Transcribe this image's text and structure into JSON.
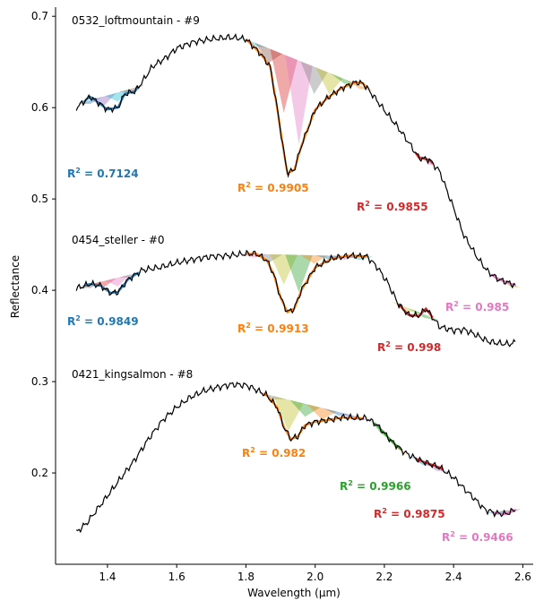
{
  "chart_data": {
    "type": "line",
    "title": "",
    "xlabel": "Wavelength (µm)",
    "ylabel": "Reflectance",
    "xlim": [
      1.25,
      2.63
    ],
    "ylim": [
      0.1,
      0.71
    ],
    "xticks": [
      1.4,
      1.6,
      1.8,
      2.0,
      2.2,
      2.4,
      2.6
    ],
    "yticks": [
      0.2,
      0.3,
      0.4,
      0.5,
      0.6,
      0.7
    ],
    "grid": false,
    "colors": {
      "spectrum": "#000000",
      "blue": "#1f77b4",
      "orange": "#ff7f0e",
      "green": "#2ca02c",
      "red": "#d62728",
      "pink": "#e377c2",
      "cyan": "#17becf",
      "purple": "#9467bd",
      "brown": "#8c564b",
      "olive": "#bcbd22",
      "gray": "#7f7f7f"
    },
    "spectra": [
      {
        "name": "0532_loftmountain - #9",
        "points": [
          [
            1.31,
            0.6
          ],
          [
            1.35,
            0.612
          ],
          [
            1.4,
            0.598
          ],
          [
            1.43,
            0.6
          ],
          [
            1.45,
            0.615
          ],
          [
            1.48,
            0.618
          ],
          [
            1.5,
            0.628
          ],
          [
            1.53,
            0.645
          ],
          [
            1.57,
            0.655
          ],
          [
            1.6,
            0.665
          ],
          [
            1.65,
            0.672
          ],
          [
            1.7,
            0.675
          ],
          [
            1.75,
            0.677
          ],
          [
            1.78,
            0.676
          ],
          [
            1.8,
            0.675
          ],
          [
            1.84,
            0.66
          ],
          [
            1.87,
            0.645
          ],
          [
            1.89,
            0.6
          ],
          [
            1.91,
            0.55
          ],
          [
            1.92,
            0.528
          ],
          [
            1.94,
            0.532
          ],
          [
            1.96,
            0.558
          ],
          [
            2.0,
            0.598
          ],
          [
            2.04,
            0.612
          ],
          [
            2.08,
            0.622
          ],
          [
            2.12,
            0.628
          ],
          [
            2.14,
            0.626
          ],
          [
            2.17,
            0.612
          ],
          [
            2.2,
            0.597
          ],
          [
            2.24,
            0.578
          ],
          [
            2.27,
            0.562
          ],
          [
            2.3,
            0.545
          ],
          [
            2.33,
            0.543
          ],
          [
            2.36,
            0.53
          ],
          [
            2.4,
            0.49
          ],
          [
            2.43,
            0.46
          ],
          [
            2.47,
            0.435
          ],
          [
            2.5,
            0.42
          ],
          [
            2.53,
            0.412
          ],
          [
            2.56,
            0.408
          ],
          [
            2.58,
            0.405
          ]
        ],
        "fits": [
          {
            "color": "blue",
            "range": [
              1.33,
              1.49
            ],
            "r2": "0.7124"
          },
          {
            "color": "orange",
            "range": [
              1.8,
              2.15
            ],
            "r2": "0.9905"
          },
          {
            "color": "red",
            "range": [
              2.29,
              2.34
            ],
            "r2": "0.9855"
          },
          {
            "color": "pink",
            "range": [
              2.51,
              2.58
            ],
            "r2": "0.985"
          }
        ]
      },
      {
        "name": "0454_steller - #0",
        "points": [
          [
            1.31,
            0.402
          ],
          [
            1.35,
            0.407
          ],
          [
            1.38,
            0.405
          ],
          [
            1.41,
            0.397
          ],
          [
            1.43,
            0.398
          ],
          [
            1.46,
            0.412
          ],
          [
            1.5,
            0.422
          ],
          [
            1.55,
            0.425
          ],
          [
            1.6,
            0.43
          ],
          [
            1.65,
            0.434
          ],
          [
            1.7,
            0.437
          ],
          [
            1.75,
            0.438
          ],
          [
            1.8,
            0.44
          ],
          [
            1.83,
            0.44
          ],
          [
            1.86,
            0.433
          ],
          [
            1.88,
            0.418
          ],
          [
            1.9,
            0.392
          ],
          [
            1.92,
            0.376
          ],
          [
            1.94,
            0.38
          ],
          [
            1.96,
            0.4
          ],
          [
            2.0,
            0.425
          ],
          [
            2.05,
            0.435
          ],
          [
            2.1,
            0.438
          ],
          [
            2.15,
            0.437
          ],
          [
            2.18,
            0.425
          ],
          [
            2.21,
            0.408
          ],
          [
            2.24,
            0.385
          ],
          [
            2.27,
            0.373
          ],
          [
            2.3,
            0.372
          ],
          [
            2.32,
            0.38
          ],
          [
            2.34,
            0.37
          ],
          [
            2.36,
            0.36
          ],
          [
            2.4,
            0.356
          ],
          [
            2.43,
            0.357
          ],
          [
            2.46,
            0.352
          ],
          [
            2.5,
            0.344
          ],
          [
            2.53,
            0.342
          ],
          [
            2.56,
            0.341
          ],
          [
            2.58,
            0.343
          ]
        ],
        "fits": [
          {
            "color": "blue",
            "range": [
              1.33,
              1.49
            ],
            "r2": "0.9849"
          },
          {
            "color": "orange",
            "range": [
              1.8,
              2.15
            ],
            "r2": "0.9913"
          },
          {
            "color": "red",
            "range": [
              2.24,
              2.34
            ],
            "r2": "0.998"
          }
        ]
      },
      {
        "name": "0421_kingsalmon - #8",
        "points": [
          [
            1.31,
            0.135
          ],
          [
            1.34,
            0.145
          ],
          [
            1.37,
            0.16
          ],
          [
            1.4,
            0.175
          ],
          [
            1.44,
            0.195
          ],
          [
            1.48,
            0.215
          ],
          [
            1.52,
            0.238
          ],
          [
            1.56,
            0.258
          ],
          [
            1.6,
            0.272
          ],
          [
            1.64,
            0.283
          ],
          [
            1.68,
            0.29
          ],
          [
            1.72,
            0.294
          ],
          [
            1.76,
            0.297
          ],
          [
            1.8,
            0.296
          ],
          [
            1.82,
            0.293
          ],
          [
            1.86,
            0.285
          ],
          [
            1.89,
            0.272
          ],
          [
            1.91,
            0.25
          ],
          [
            1.93,
            0.237
          ],
          [
            1.95,
            0.24
          ],
          [
            1.97,
            0.252
          ],
          [
            2.0,
            0.256
          ],
          [
            2.04,
            0.258
          ],
          [
            2.08,
            0.261
          ],
          [
            2.12,
            0.26
          ],
          [
            2.15,
            0.26
          ],
          [
            2.18,
            0.252
          ],
          [
            2.22,
            0.235
          ],
          [
            2.26,
            0.222
          ],
          [
            2.3,
            0.214
          ],
          [
            2.33,
            0.21
          ],
          [
            2.36,
            0.206
          ],
          [
            2.4,
            0.195
          ],
          [
            2.43,
            0.183
          ],
          [
            2.46,
            0.172
          ],
          [
            2.49,
            0.16
          ],
          [
            2.52,
            0.156
          ],
          [
            2.55,
            0.155
          ],
          [
            2.58,
            0.16
          ]
        ],
        "fits": [
          {
            "color": "orange",
            "range": [
              1.85,
              2.14
            ],
            "r2": "0.982"
          },
          {
            "color": "green",
            "range": [
              2.17,
              2.25
            ],
            "r2": "0.9966"
          },
          {
            "color": "red",
            "range": [
              2.29,
              2.37
            ],
            "r2": "0.9875"
          },
          {
            "color": "pink",
            "range": [
              2.51,
              2.58
            ],
            "r2": "0.9466"
          }
        ]
      }
    ]
  }
}
